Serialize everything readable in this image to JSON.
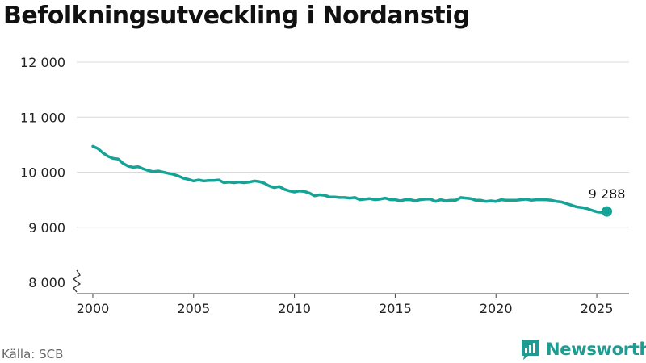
{
  "title": "Befolkningsutveckling i Nordanstig",
  "source": "Källa: SCB",
  "brand": {
    "name": "Newsworthy",
    "color": "#1e9c92"
  },
  "chart_data": {
    "type": "line",
    "title": "Befolkningsutveckling i Nordanstig",
    "xlabel": "",
    "ylabel": "",
    "xlim": [
      1999.2,
      2026.6
    ],
    "ylim": [
      8000,
      12000
    ],
    "y_axis_break": true,
    "grid": true,
    "x_ticks": [
      2000,
      2005,
      2010,
      2015,
      2020,
      2025
    ],
    "y_ticks": [
      8000,
      9000,
      10000,
      11000,
      12000
    ],
    "x_tick_labels": [
      "2000",
      "2005",
      "2010",
      "2015",
      "2020",
      "2025"
    ],
    "y_tick_labels": [
      "8 000",
      "9 000",
      "10 000",
      "11 000",
      "12 000"
    ],
    "line_color": "#14a396",
    "series": [
      {
        "name": "",
        "x": [
          2000.0,
          2000.25,
          2000.5,
          2000.75,
          2001.0,
          2001.25,
          2001.5,
          2001.75,
          2002.0,
          2002.25,
          2002.5,
          2002.75,
          2003.0,
          2003.25,
          2003.5,
          2003.75,
          2004.0,
          2004.25,
          2004.5,
          2004.75,
          2005.0,
          2005.25,
          2005.5,
          2005.75,
          2006.0,
          2006.25,
          2006.5,
          2006.75,
          2007.0,
          2007.25,
          2007.5,
          2007.75,
          2008.0,
          2008.25,
          2008.5,
          2008.75,
          2009.0,
          2009.25,
          2009.5,
          2009.75,
          2010.0,
          2010.25,
          2010.5,
          2010.75,
          2011.0,
          2011.25,
          2011.5,
          2011.75,
          2012.0,
          2012.25,
          2012.5,
          2012.75,
          2013.0,
          2013.25,
          2013.5,
          2013.75,
          2014.0,
          2014.25,
          2014.5,
          2014.75,
          2015.0,
          2015.25,
          2015.5,
          2015.75,
          2016.0,
          2016.25,
          2016.5,
          2016.75,
          2017.0,
          2017.25,
          2017.5,
          2017.75,
          2018.0,
          2018.25,
          2018.5,
          2018.75,
          2019.0,
          2019.25,
          2019.5,
          2019.75,
          2020.0,
          2020.25,
          2020.5,
          2020.75,
          2021.0,
          2021.25,
          2021.5,
          2021.75,
          2022.0,
          2022.25,
          2022.5,
          2022.75,
          2023.0,
          2023.25,
          2023.5,
          2023.75,
          2024.0,
          2024.25,
          2024.5,
          2024.75,
          2025.0,
          2025.25,
          2025.5
        ],
        "values": [
          10470,
          10430,
          10350,
          10290,
          10250,
          10240,
          10160,
          10110,
          10090,
          10100,
          10060,
          10030,
          10010,
          10020,
          10000,
          9980,
          9960,
          9930,
          9890,
          9870,
          9840,
          9860,
          9840,
          9850,
          9850,
          9860,
          9810,
          9820,
          9810,
          9820,
          9810,
          9820,
          9840,
          9830,
          9800,
          9750,
          9720,
          9740,
          9690,
          9660,
          9640,
          9660,
          9650,
          9620,
          9570,
          9590,
          9580,
          9550,
          9550,
          9540,
          9540,
          9530,
          9540,
          9500,
          9510,
          9520,
          9500,
          9510,
          9530,
          9500,
          9500,
          9480,
          9500,
          9500,
          9480,
          9500,
          9510,
          9510,
          9470,
          9500,
          9480,
          9490,
          9490,
          9540,
          9530,
          9520,
          9490,
          9490,
          9470,
          9480,
          9470,
          9500,
          9490,
          9490,
          9490,
          9500,
          9510,
          9490,
          9500,
          9500,
          9500,
          9490,
          9470,
          9460,
          9430,
          9400,
          9370,
          9360,
          9340,
          9310,
          9280,
          9270,
          9288
        ]
      }
    ],
    "annotations": [
      {
        "x": 2025.5,
        "y": 9288,
        "text": "9 288"
      }
    ]
  }
}
